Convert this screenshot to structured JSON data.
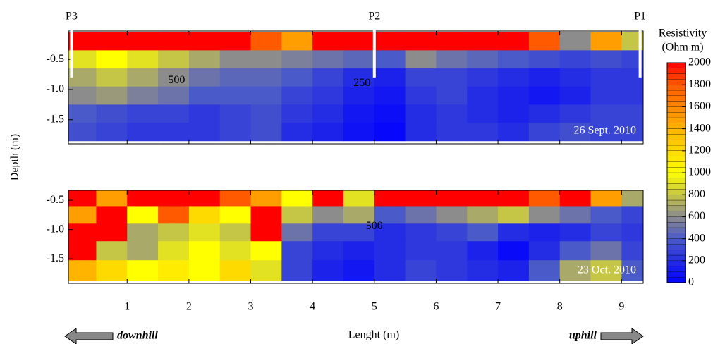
{
  "chart_data": {
    "type": "heatmap",
    "xlabel": "Lenght (m)",
    "ylabel": "Depth (m)",
    "left_note": "downhill",
    "right_note": "uphill",
    "xlim": [
      0.05,
      9.35
    ],
    "xticks": [
      1,
      2,
      3,
      4,
      5,
      6,
      7,
      8,
      9
    ],
    "x": [
      0.25,
      0.75,
      1.25,
      1.75,
      2.25,
      2.75,
      3.25,
      3.75,
      4.25,
      4.75,
      5.25,
      5.75,
      6.25,
      6.75,
      7.25,
      7.75,
      8.25,
      8.75,
      9.25
    ],
    "probes": [
      {
        "label": "P3",
        "x": 0.1
      },
      {
        "label": "P2",
        "x": 5.0
      },
      {
        "label": "P1",
        "x": 9.3
      }
    ],
    "colorbar": {
      "title": [
        "Resistivity",
        "(Ohm m)"
      ],
      "lim": [
        0,
        2000
      ],
      "ticks": [
        0,
        200,
        400,
        600,
        800,
        1000,
        1200,
        1400,
        1600,
        1800,
        2000
      ],
      "stops": [
        [
          0,
          "#0000ff"
        ],
        [
          400,
          "#4a5ac8"
        ],
        [
          600,
          "#8c8c8c"
        ],
        [
          1000,
          "#ffff00"
        ],
        [
          1400,
          "#ffb400"
        ],
        [
          1800,
          "#ff5a00"
        ],
        [
          2000,
          "#ff0000"
        ]
      ]
    },
    "panels": [
      {
        "date": "26 Sept. 2010",
        "ylim": [
          -1.9,
          -0.03
        ],
        "yticks": [
          -0.5,
          {
            "value": -1,
            "label": "-1.0"
          },
          -1.5
        ],
        "depth": [
          -0.2,
          -0.5,
          -0.8,
          -1.1,
          -1.4,
          -1.7
        ],
        "values": [
          [
            2000,
            2000,
            2000,
            2000,
            2000,
            2000,
            1800,
            1500,
            2000,
            2000,
            2000,
            2000,
            2000,
            2000,
            2000,
            1800,
            600,
            1500,
            800
          ],
          [
            900,
            1000,
            900,
            800,
            700,
            600,
            600,
            550,
            500,
            450,
            400,
            600,
            500,
            450,
            400,
            350,
            300,
            350,
            300
          ],
          [
            700,
            800,
            700,
            600,
            500,
            450,
            450,
            400,
            300,
            200,
            150,
            300,
            300,
            250,
            200,
            150,
            200,
            250,
            250
          ],
          [
            600,
            650,
            550,
            500,
            400,
            400,
            400,
            300,
            250,
            150,
            100,
            250,
            300,
            200,
            150,
            100,
            150,
            250,
            250
          ],
          [
            400,
            350,
            300,
            300,
            250,
            300,
            350,
            250,
            200,
            100,
            60,
            200,
            250,
            200,
            150,
            200,
            250,
            300,
            300
          ],
          [
            350,
            300,
            250,
            250,
            250,
            300,
            350,
            200,
            150,
            80,
            30,
            200,
            250,
            250,
            200,
            300,
            350,
            300,
            300
          ]
        ],
        "contour_labels": [
          {
            "text": "500",
            "x": 1.8,
            "y": -0.85
          },
          {
            "text": "250",
            "x": 4.8,
            "y": -0.9
          }
        ]
      },
      {
        "date": "23 Oct. 2010",
        "ylim": [
          -1.92,
          -0.33
        ],
        "yticks": [
          -0.5,
          {
            "value": -1,
            "label": "-1.0"
          },
          -1.5
        ],
        "depth": [
          -0.45,
          -0.75,
          -1.05,
          -1.35,
          -1.7
        ],
        "values": [
          [
            2000,
            1500,
            2000,
            2000,
            2000,
            1800,
            1500,
            1000,
            2000,
            900,
            2000,
            2000,
            2000,
            2000,
            2000,
            1800,
            2000,
            1500,
            700
          ],
          [
            1500,
            2000,
            1000,
            1800,
            1200,
            1000,
            2000,
            800,
            600,
            700,
            400,
            500,
            600,
            700,
            800,
            600,
            500,
            400,
            300
          ],
          [
            2000,
            2000,
            700,
            800,
            900,
            800,
            2000,
            500,
            300,
            300,
            200,
            250,
            300,
            400,
            200,
            150,
            200,
            300,
            250
          ],
          [
            2000,
            800,
            700,
            900,
            1000,
            900,
            1000,
            300,
            200,
            150,
            200,
            250,
            250,
            150,
            50,
            200,
            400,
            500,
            300
          ],
          [
            1400,
            1200,
            1000,
            1100,
            1000,
            1200,
            900,
            300,
            150,
            100,
            200,
            300,
            250,
            200,
            150,
            400,
            700,
            800,
            400
          ]
        ],
        "contour_labels": [
          {
            "text": "500",
            "x": 5.0,
            "y": -0.95
          }
        ]
      }
    ]
  }
}
